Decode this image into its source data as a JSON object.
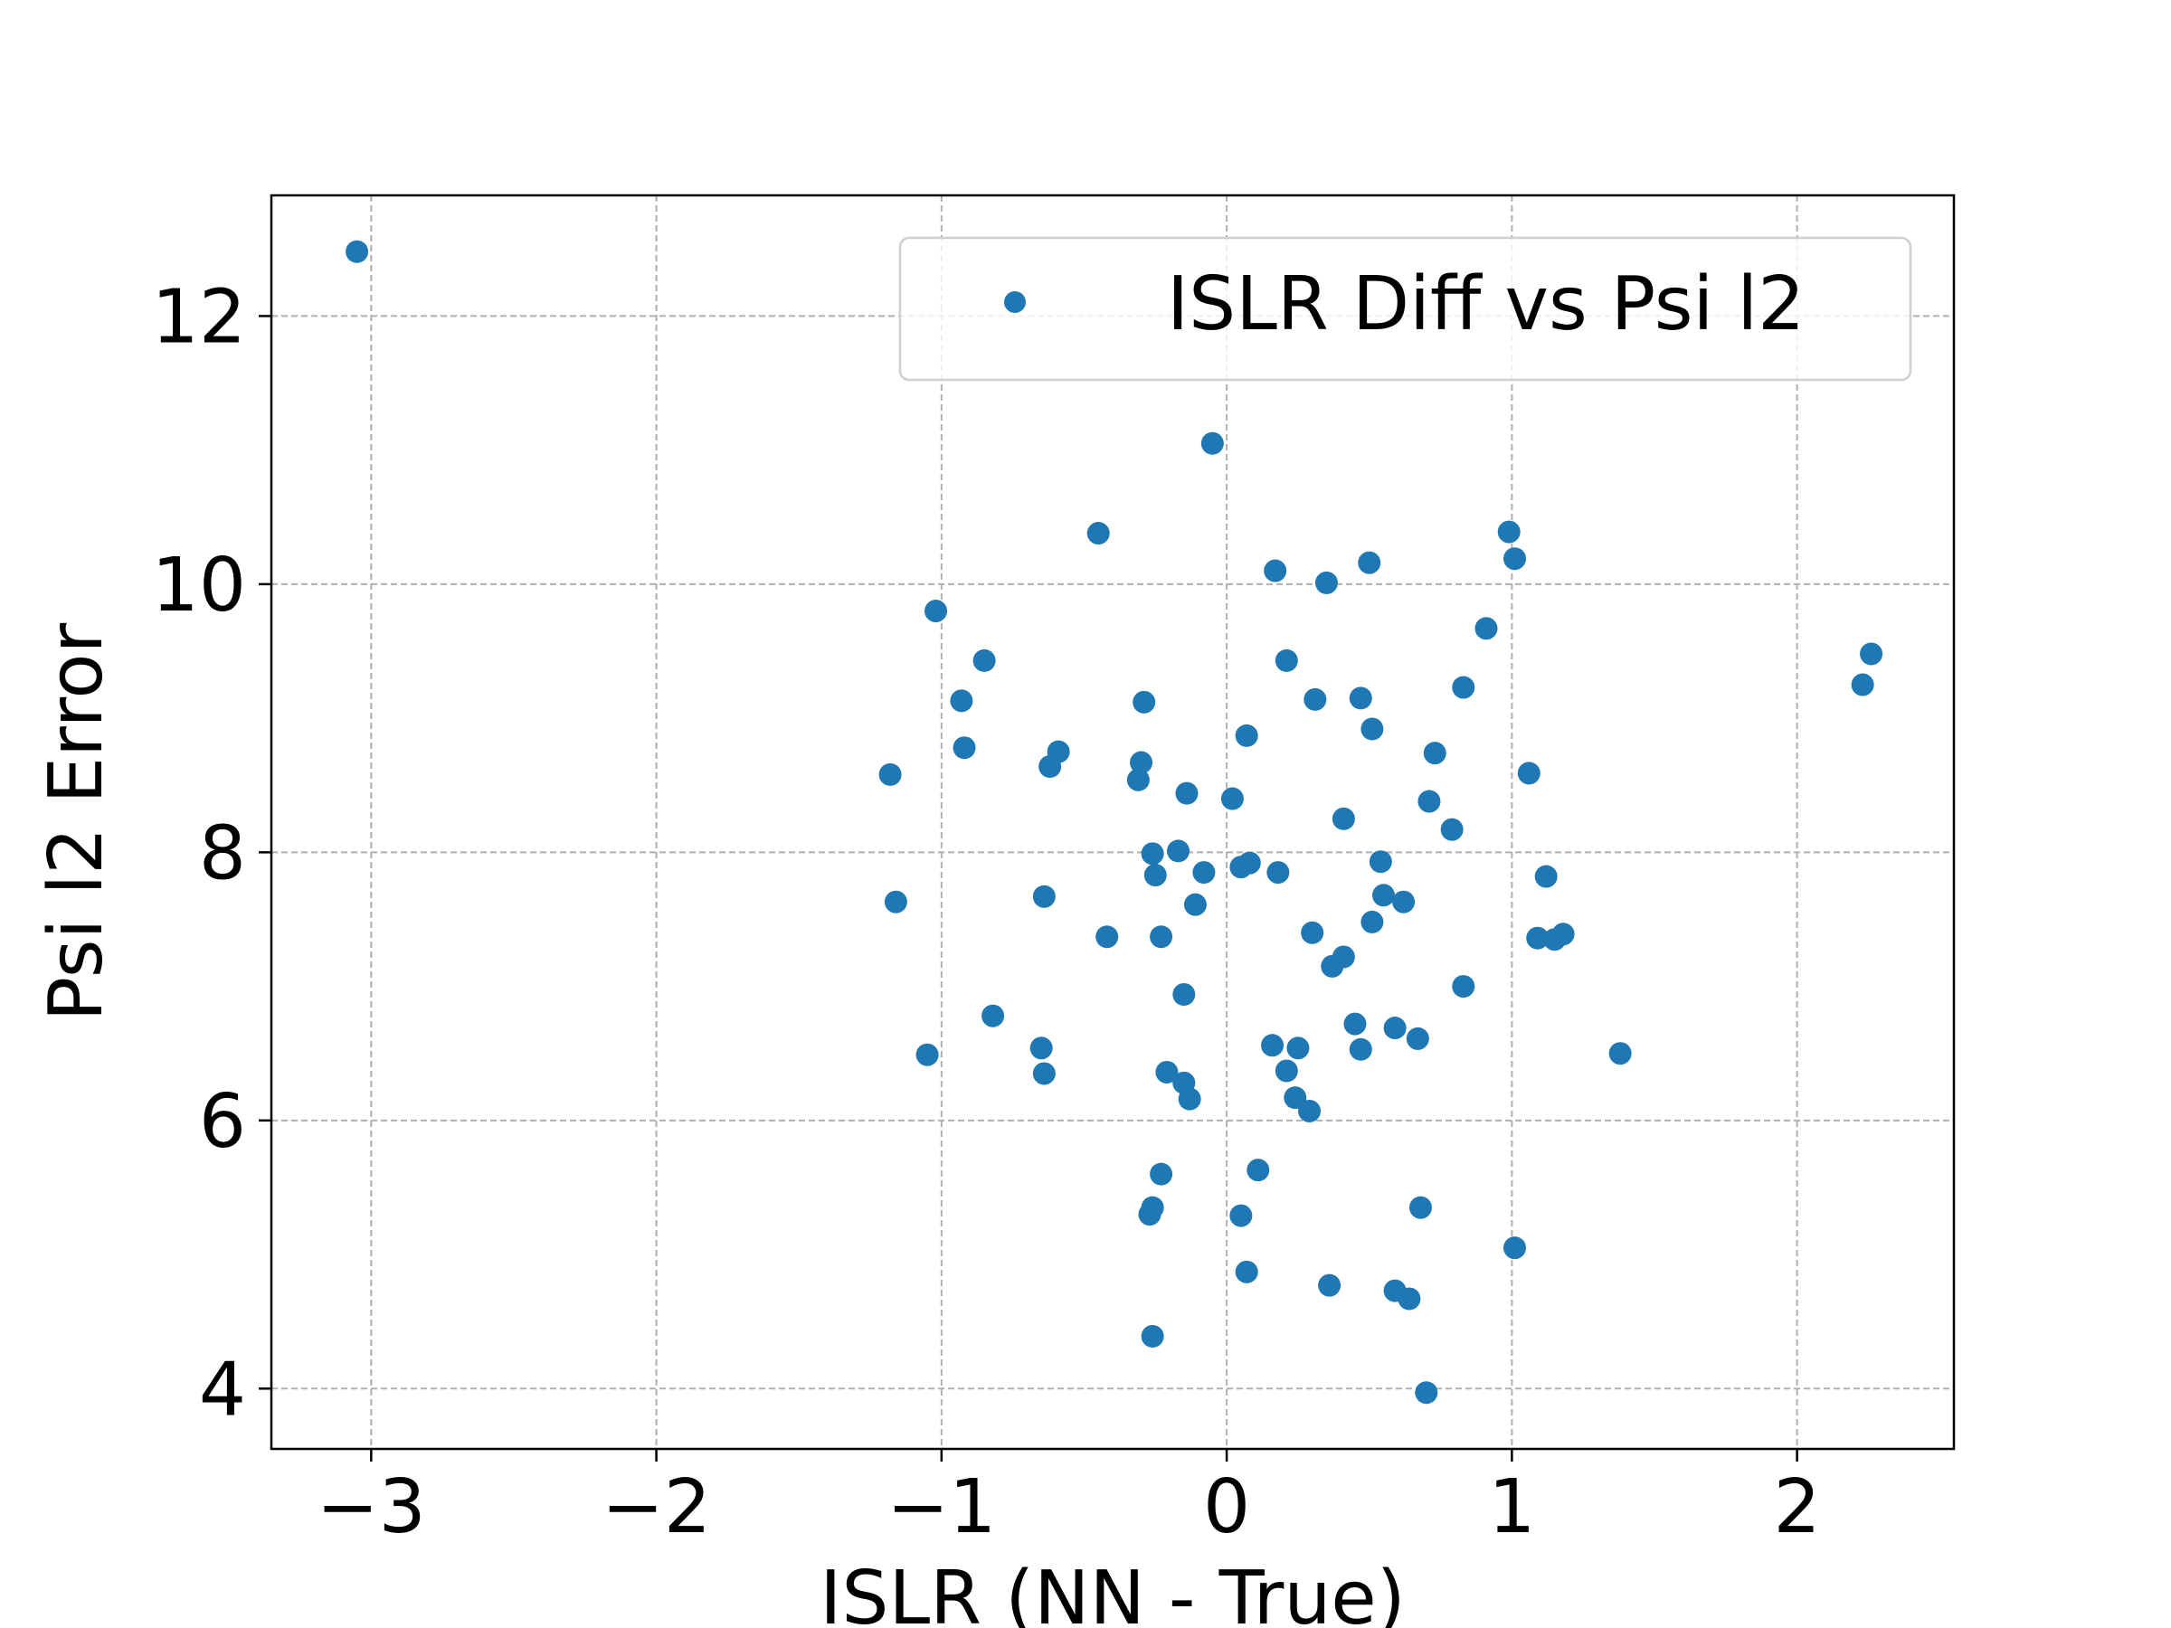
{
  "chart_data": {
    "type": "scatter",
    "xlabel": "ISLR (NN - True)",
    "ylabel": "Psi l2 Error",
    "xlim": [
      -3.35,
      2.55
    ],
    "ylim": [
      3.55,
      12.9
    ],
    "x_ticks": [
      -3,
      -2,
      -1,
      0,
      1,
      2
    ],
    "x_tick_labels": [
      "−3",
      "−2",
      "−1",
      "0",
      "1",
      "2"
    ],
    "y_ticks": [
      4,
      6,
      8,
      10,
      12
    ],
    "y_tick_labels": [
      "4",
      "6",
      "8",
      "10",
      "12"
    ],
    "grid": true,
    "legend_position": "top-right",
    "series": [
      {
        "name": "ISLR Diff vs Psi l2",
        "color": "#1f77b4",
        "points": [
          [
            -3.05,
            12.48
          ],
          [
            -0.05,
            11.05
          ],
          [
            -0.45,
            10.38
          ],
          [
            0.99,
            10.39
          ],
          [
            1.01,
            10.19
          ],
          [
            0.17,
            10.1
          ],
          [
            0.35,
            10.01
          ],
          [
            0.5,
            10.16
          ],
          [
            -1.02,
            9.8
          ],
          [
            0.91,
            9.67
          ],
          [
            -0.85,
            9.43
          ],
          [
            0.21,
            9.43
          ],
          [
            2.26,
            9.48
          ],
          [
            2.23,
            9.25
          ],
          [
            0.83,
            9.23
          ],
          [
            -0.93,
            9.13
          ],
          [
            -0.29,
            9.12
          ],
          [
            0.31,
            9.14
          ],
          [
            0.47,
            9.15
          ],
          [
            0.51,
            8.92
          ],
          [
            0.07,
            8.87
          ],
          [
            -0.92,
            8.78
          ],
          [
            -0.59,
            8.75
          ],
          [
            -0.62,
            8.64
          ],
          [
            -0.3,
            8.67
          ],
          [
            0.73,
            8.74
          ],
          [
            -1.18,
            8.58
          ],
          [
            -0.31,
            8.54
          ],
          [
            1.06,
            8.59
          ],
          [
            -0.14,
            8.44
          ],
          [
            0.02,
            8.4
          ],
          [
            0.71,
            8.38
          ],
          [
            0.41,
            8.25
          ],
          [
            0.79,
            8.17
          ],
          [
            -0.26,
            7.99
          ],
          [
            -0.17,
            8.01
          ],
          [
            0.54,
            7.93
          ],
          [
            0.08,
            7.92
          ],
          [
            0.05,
            7.89
          ],
          [
            -0.08,
            7.85
          ],
          [
            0.18,
            7.85
          ],
          [
            -0.25,
            7.83
          ],
          [
            1.12,
            7.82
          ],
          [
            0.55,
            7.68
          ],
          [
            0.62,
            7.63
          ],
          [
            -1.16,
            7.63
          ],
          [
            -0.64,
            7.67
          ],
          [
            -0.11,
            7.61
          ],
          [
            0.51,
            7.48
          ],
          [
            0.3,
            7.4
          ],
          [
            -0.42,
            7.37
          ],
          [
            -0.23,
            7.37
          ],
          [
            1.09,
            7.36
          ],
          [
            1.15,
            7.35
          ],
          [
            1.18,
            7.39
          ],
          [
            0.41,
            7.22
          ],
          [
            0.37,
            7.15
          ],
          [
            0.83,
            7.0
          ],
          [
            -0.15,
            6.94
          ],
          [
            -0.82,
            6.78
          ],
          [
            0.45,
            6.72
          ],
          [
            0.59,
            6.69
          ],
          [
            0.67,
            6.61
          ],
          [
            0.16,
            6.56
          ],
          [
            0.25,
            6.54
          ],
          [
            0.47,
            6.53
          ],
          [
            -0.65,
            6.54
          ],
          [
            -1.05,
            6.49
          ],
          [
            1.38,
            6.5
          ],
          [
            -0.21,
            6.36
          ],
          [
            -0.64,
            6.35
          ],
          [
            0.21,
            6.37
          ],
          [
            -0.15,
            6.28
          ],
          [
            0.24,
            6.17
          ],
          [
            -0.13,
            6.16
          ],
          [
            0.29,
            6.07
          ],
          [
            0.11,
            5.63
          ],
          [
            -0.23,
            5.6
          ],
          [
            0.68,
            5.35
          ],
          [
            -0.26,
            5.35
          ],
          [
            -0.27,
            5.3
          ],
          [
            0.05,
            5.29
          ],
          [
            1.01,
            5.05
          ],
          [
            0.07,
            4.87
          ],
          [
            0.36,
            4.77
          ],
          [
            0.59,
            4.73
          ],
          [
            0.64,
            4.67
          ],
          [
            -0.26,
            4.39
          ],
          [
            0.7,
            3.97
          ]
        ]
      }
    ]
  }
}
